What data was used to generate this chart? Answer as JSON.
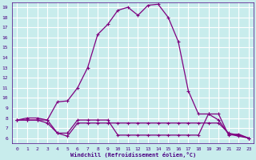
{
  "xlabel": "Windchill (Refroidissement éolien,°C)",
  "background_color": "#c8ecec",
  "grid_color": "#ffffff",
  "line_color": "#800080",
  "xlim": [
    -0.5,
    23.5
  ],
  "ylim": [
    5.5,
    19.5
  ],
  "xticks": [
    0,
    1,
    2,
    3,
    4,
    5,
    6,
    7,
    8,
    9,
    10,
    11,
    12,
    13,
    14,
    15,
    16,
    17,
    18,
    19,
    20,
    21,
    22,
    23
  ],
  "yticks": [
    6,
    7,
    8,
    9,
    10,
    11,
    12,
    13,
    14,
    15,
    16,
    17,
    18,
    19
  ],
  "curve1_x": [
    0,
    1,
    2,
    3,
    4,
    5,
    6,
    7,
    8,
    9,
    10,
    11,
    12,
    13,
    14,
    15,
    16,
    17,
    18,
    19,
    20,
    21,
    22,
    23
  ],
  "curve1_y": [
    7.8,
    8.0,
    8.0,
    7.8,
    9.6,
    9.7,
    11.0,
    13.0,
    16.3,
    17.3,
    18.7,
    19.0,
    18.2,
    19.2,
    19.3,
    18.0,
    15.6,
    10.7,
    8.4,
    8.4,
    7.8,
    6.4,
    6.2,
    6.0
  ],
  "curve2_x": [
    0,
    1,
    2,
    3,
    4,
    5,
    6,
    7,
    8,
    9,
    10,
    11,
    12,
    13,
    14,
    15,
    16,
    17,
    18,
    19,
    20,
    21,
    22,
    23
  ],
  "curve2_y": [
    7.8,
    7.8,
    7.8,
    7.5,
    6.5,
    6.2,
    7.5,
    7.5,
    7.5,
    7.5,
    7.5,
    7.5,
    7.5,
    7.5,
    7.5,
    7.5,
    7.5,
    7.5,
    7.5,
    7.5,
    7.5,
    6.5,
    6.3,
    6.0
  ],
  "curve3_x": [
    0,
    1,
    2,
    3,
    4,
    5,
    6,
    7,
    8,
    9,
    10,
    11,
    12,
    13,
    14,
    15,
    16,
    17,
    18,
    19,
    20,
    21,
    22,
    23
  ],
  "curve3_y": [
    7.8,
    7.8,
    7.8,
    7.8,
    6.5,
    6.5,
    7.8,
    7.8,
    7.8,
    7.8,
    6.3,
    6.3,
    6.3,
    6.3,
    6.3,
    6.3,
    6.3,
    6.3,
    6.3,
    8.4,
    8.4,
    6.3,
    6.4,
    6.0
  ],
  "label_color": "#4b0082",
  "spine_color": "#4b0082"
}
